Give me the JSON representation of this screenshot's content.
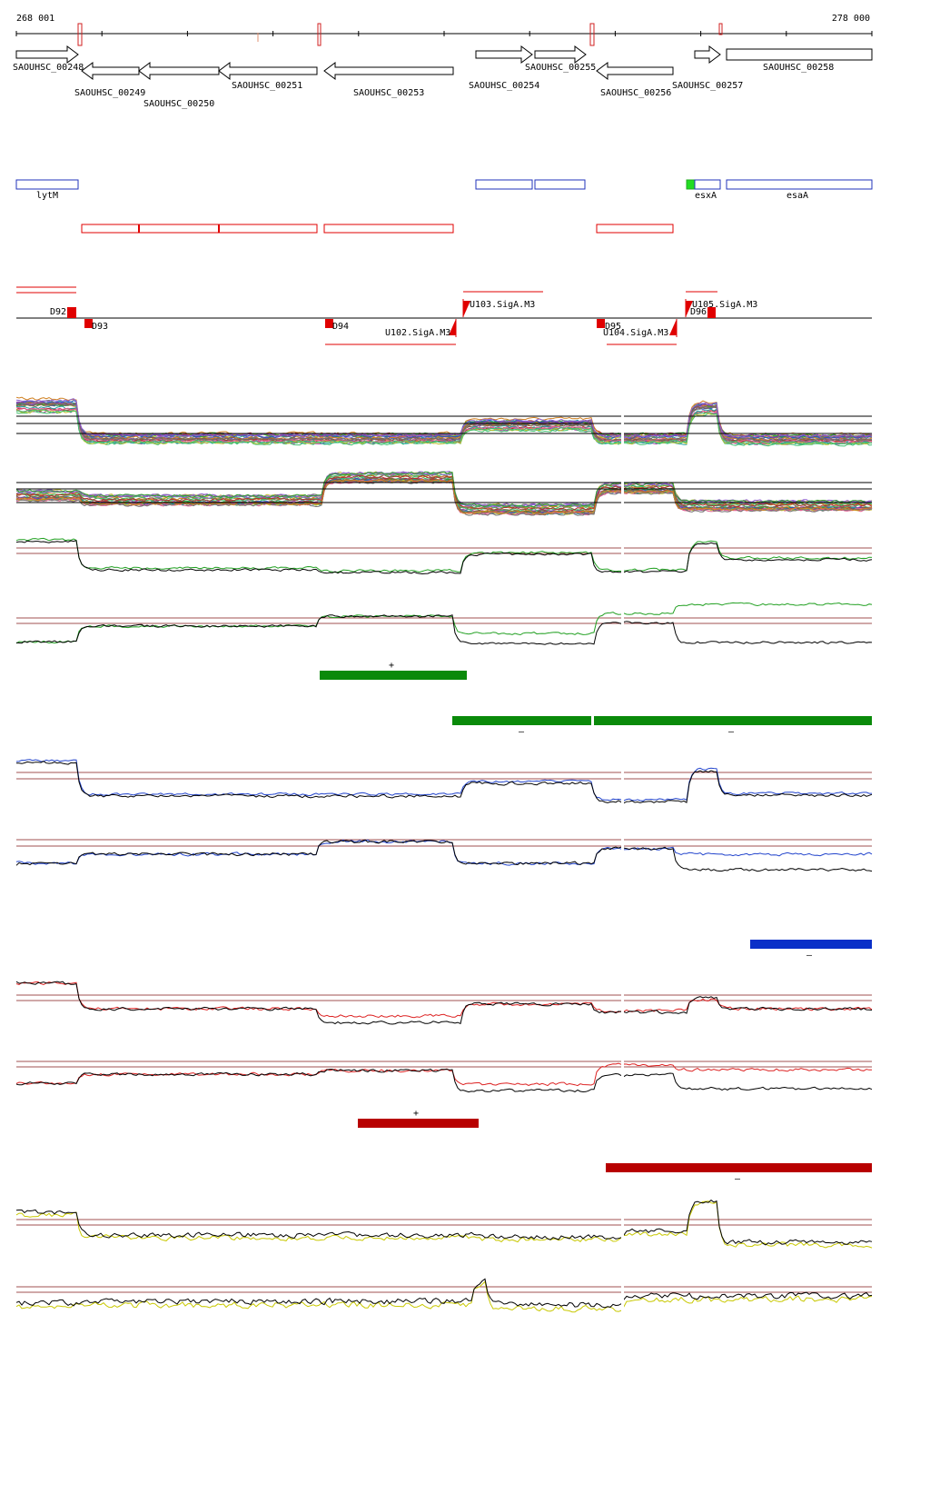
{
  "coords": {
    "start": "268 001",
    "end": "278 000"
  },
  "colors": {
    "gene": "#000000",
    "orf": "#2233bb",
    "red": "#e00000",
    "green_bar": "#0a8a0a",
    "blue_bar": "#0a30c8",
    "red_bar": "#b80000",
    "yellow_line": "#c8c800",
    "thresh": "#a05050",
    "green_line": "#22a022",
    "blue_line": "#2244cc",
    "red_line": "#dd2222"
  },
  "genes": [
    {
      "id": "g248",
      "label": "SAOUHSC_00248",
      "strand": "+",
      "start": 18,
      "end": 86
    },
    {
      "id": "g249",
      "label": "SAOUHSC_00249",
      "strand": "-",
      "start": 90,
      "end": 153
    },
    {
      "id": "g250",
      "label": "SAOUHSC_00250",
      "strand": "-",
      "start": 153,
      "end": 241
    },
    {
      "id": "g251",
      "label": "SAOUHSC_00251",
      "strand": "-",
      "start": 241,
      "end": 349
    },
    {
      "id": "g253",
      "label": "SAOUHSC_00253",
      "strand": "-",
      "start": 357,
      "end": 499
    },
    {
      "id": "g254",
      "label": "SAOUHSC_00254",
      "strand": "+",
      "start": 524,
      "end": 586
    },
    {
      "id": "g255",
      "label": "SAOUHSC_00255",
      "strand": "+",
      "start": 589,
      "end": 645
    },
    {
      "id": "g256",
      "label": "SAOUHSC_00256",
      "strand": "-",
      "start": 657,
      "end": 741
    },
    {
      "id": "g257",
      "label": "SAOUHSC_00257",
      "strand": "+",
      "start": 765,
      "end": 793
    },
    {
      "id": "g258",
      "label": "SAOUHSC_00258",
      "strand": "-",
      "start": 800,
      "end": 960
    }
  ],
  "orf_labels": [
    "lytM",
    "esxA",
    "esaA"
  ],
  "promoters": [
    {
      "id": "D92",
      "label": "D92"
    },
    {
      "id": "D93",
      "label": "D93"
    },
    {
      "id": "D94",
      "label": "D94"
    },
    {
      "id": "U102",
      "label": "U102.SigA.M3"
    },
    {
      "id": "U103",
      "label": "U103.SigA.M3"
    },
    {
      "id": "D95",
      "label": "D95"
    },
    {
      "id": "U104",
      "label": "U104.SigA.M3"
    },
    {
      "id": "U105",
      "label": "U105.SigA.M3"
    },
    {
      "id": "D96",
      "label": "D96"
    }
  ],
  "segment_marks": {
    "plus": "+",
    "minus": "–"
  }
}
